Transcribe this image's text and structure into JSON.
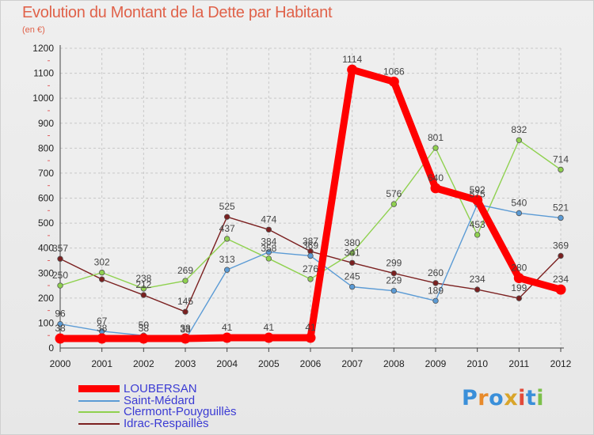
{
  "title": "Evolution du Montant de la Dette par Habitant",
  "unit": "(en €)",
  "logo": "Proxiti",
  "chart_data": {
    "type": "line",
    "ylim": [
      0,
      1200
    ],
    "yticks": [
      0,
      100,
      200,
      300,
      400,
      500,
      600,
      700,
      800,
      900,
      1000,
      1100,
      1200
    ],
    "categories": [
      "2000",
      "2001",
      "2002",
      "2003",
      "2004",
      "2005",
      "2006",
      "2007",
      "2008",
      "2009",
      "2010",
      "2011",
      "2012"
    ],
    "grid": true,
    "legend_position": "bottom-left",
    "series": [
      {
        "name": "Idrac-Respaillès",
        "color": "#7b2020",
        "values": [
          357,
          275,
          212,
          145,
          525,
          474,
          387,
          341,
          299,
          260,
          234,
          199,
          369
        ],
        "labels": [
          "357",
          "",
          "212",
          "145",
          "525",
          "474",
          "387",
          "341",
          "299",
          "260",
          "234",
          "199",
          "369"
        ]
      },
      {
        "name": "Clermont-Pouyguillès",
        "color": "#8fd14f",
        "values": [
          250,
          302,
          238,
          269,
          437,
          358,
          276,
          380,
          576,
          801,
          453,
          832,
          714
        ],
        "labels": [
          "250",
          "302",
          "238",
          "269",
          "437",
          "358",
          "276",
          "380",
          "576",
          "801",
          "453",
          "832",
          "714"
        ]
      },
      {
        "name": "Saint-Médard",
        "color": "#5b9bd5",
        "values": [
          96,
          67,
          50,
          33,
          313,
          384,
          369,
          245,
          229,
          189,
          575,
          540,
          521
        ],
        "labels": [
          "96",
          "67",
          "50",
          "33",
          "313",
          "384",
          "369",
          "245",
          "229",
          "189",
          "575",
          "540",
          "521"
        ]
      },
      {
        "name": "LOUBERSAN",
        "color": "#ff0000",
        "values": [
          38,
          38,
          38,
          38,
          41,
          41,
          41,
          1114,
          1066,
          640,
          592,
          280,
          234
        ],
        "labels": [
          "38",
          "38",
          "38",
          "38",
          "41",
          "41",
          "41",
          "1114",
          "1066",
          "640",
          "592",
          "280",
          "234"
        ]
      }
    ],
    "legend_order": [
      "LOUBERSAN",
      "Saint-Médard",
      "Clermont-Pouyguillès",
      "Idrac-Respaillès"
    ]
  }
}
